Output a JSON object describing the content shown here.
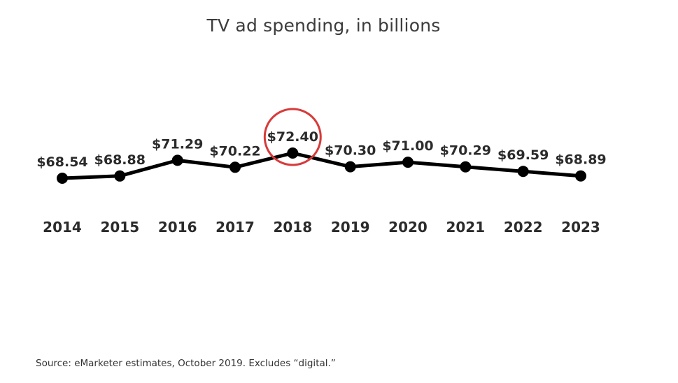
{
  "chart_data": {
    "type": "line",
    "title": "TV ad spending, in billions",
    "source": "Source: eMarketer estimates, October 2019. Excludes “digital.”",
    "categories": [
      "2014",
      "2015",
      "2016",
      "2017",
      "2018",
      "2019",
      "2020",
      "2021",
      "2022",
      "2023"
    ],
    "values": [
      68.54,
      68.88,
      71.29,
      70.22,
      72.4,
      70.3,
      71.0,
      70.29,
      69.59,
      68.89
    ],
    "value_labels": [
      "$68.54",
      "$68.88",
      "$71.29",
      "$70.22",
      "$72.40",
      "$70.30",
      "$71.00",
      "$70.29",
      "$69.59",
      "$68.89"
    ],
    "highlight": {
      "category": "2018",
      "style": "circle",
      "color": "#d83a3a"
    },
    "line_color": "#000000",
    "grid": false,
    "legend": "none"
  }
}
